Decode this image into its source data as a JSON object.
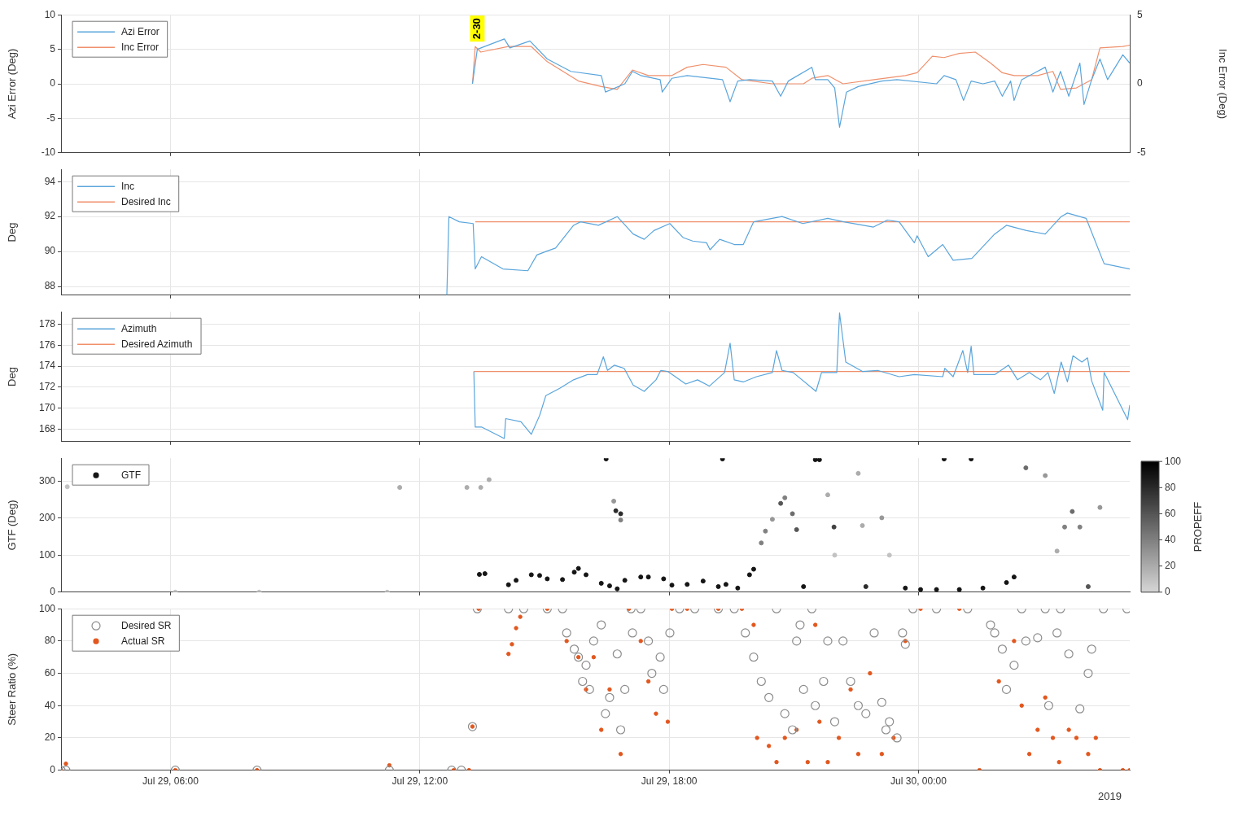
{
  "chart_data": [
    {
      "type": "line",
      "ylabel": "Azi Error (Deg)",
      "y2label": "Inc Error (Deg)",
      "xlim": [
        "--07-29T03:22",
        "--07-30T05:05"
      ],
      "xticks": [
        {
          "value": "--07-29T06:00",
          "label": "Jul 29, 06:00"
        },
        {
          "value": "--07-29T12:00",
          "label": "Jul 29, 12:00"
        },
        {
          "value": "--07-29T18:00",
          "label": "Jul 29, 18:00"
        },
        {
          "value": "--07-30T00:00",
          "label": "Jul 30, 00:00"
        }
      ],
      "ylim": [
        -10,
        10
      ],
      "yticks": [
        -10,
        -5,
        0,
        5,
        10
      ],
      "y2lim": [
        -5,
        5
      ],
      "y2ticks": [
        -5,
        0,
        5
      ],
      "tick_labels": "y",
      "grid": true,
      "legend": "top left",
      "marker": "none",
      "line_style": "solid",
      "annotations": [
        {
          "text": "2-30",
          "x": "--07-29T13:23",
          "y": 8
        }
      ],
      "series": [
        {
          "name": "Azi Error",
          "color": "#5aa5dc",
          "x": [
            "--07-29T13:16",
            "--07-29T13:23",
            "--07-29T14:02",
            "--07-29T14:10",
            "--07-29T14:39",
            "--07-29T15:04",
            "--07-29T15:38",
            "--07-29T16:22",
            "--07-29T16:28",
            "--07-29T16:56",
            "--07-29T17:07",
            "--07-29T17:19",
            "--07-29T17:47",
            "--07-29T17:50",
            "--07-29T18:04",
            "--07-29T18:26",
            "--07-29T19:17",
            "--07-29T19:28",
            "--07-29T19:39",
            "--07-29T19:56",
            "--07-29T20:29",
            "--07-29T20:41",
            "--07-29T20:52",
            "--07-29T21:26",
            "--07-29T21:31",
            "--07-29T21:49",
            "--07-29T21:59",
            "--07-29T22:06",
            "--07-29T22:16",
            "--07-29T22:33",
            "--07-29T23:07",
            "--07-29T23:29",
            "--07-30T00:26",
            "--07-30T00:37",
            "--07-30T00:54",
            "--07-30T01:05",
            "--07-30T01:16",
            "--07-30T01:33",
            "--07-30T01:50",
            "--07-30T02:01",
            "--07-30T02:13",
            "--07-30T02:18",
            "--07-30T02:29",
            "--07-30T03:03",
            "--07-30T03:14",
            "--07-30T03:25",
            "--07-30T03:37",
            "--07-30T03:53",
            "--07-30T03:59",
            "--07-30T04:10",
            "--07-30T04:22",
            "--07-30T04:33",
            "--07-30T04:55",
            "--07-30T05:05"
          ],
          "values": [
            0,
            5,
            6.5,
            5.2,
            6.2,
            3.6,
            1.8,
            1.2,
            -1.2,
            0,
            1.8,
            1.2,
            0.6,
            -1.2,
            0.8,
            1.2,
            0.6,
            -2.6,
            0.4,
            0.6,
            0.4,
            -1.8,
            0.4,
            2.4,
            0.6,
            0.6,
            -0.6,
            -6.3,
            -1.2,
            -0.4,
            0.4,
            0.6,
            0,
            1.2,
            0.6,
            -2.4,
            0.4,
            0,
            0.4,
            -1.8,
            0.4,
            -2.4,
            0.6,
            2.4,
            -1.2,
            1.8,
            -1.8,
            3,
            -3,
            0.6,
            3.6,
            0.6,
            4.2,
            3
          ]
        },
        {
          "name": "Inc Error",
          "color": "#f0906c",
          "axis": "y2",
          "x": [
            "--07-29T13:16",
            "--07-29T13:20",
            "--07-29T13:28",
            "--07-29T14:08",
            "--07-29T14:41",
            "--07-29T15:04",
            "--07-29T15:49",
            "--07-29T16:22",
            "--07-29T16:45",
            "--07-29T17:07",
            "--07-29T17:30",
            "--07-29T18:04",
            "--07-29T18:26",
            "--07-29T18:49",
            "--07-29T19:22",
            "--07-29T19:45",
            "--07-29T20:29",
            "--07-29T21:14",
            "--07-29T21:26",
            "--07-29T21:49",
            "--07-29T22:11",
            "--07-29T22:56",
            "--07-29T23:41",
            "--07-29T23:58",
            "--07-30T00:20",
            "--07-30T00:37",
            "--07-30T00:59",
            "--07-30T01:22",
            "--07-30T01:44",
            "--07-30T02:01",
            "--07-30T02:18",
            "--07-30T02:52",
            "--07-30T03:14",
            "--07-30T03:25",
            "--07-30T03:48",
            "--07-30T04:10",
            "--07-30T04:22",
            "--07-30T04:55",
            "--07-30T05:05"
          ],
          "values": [
            0,
            2.7,
            2.3,
            2.7,
            2.7,
            1.6,
            0.2,
            -0.2,
            -0.4,
            1.0,
            0.6,
            0.6,
            1.2,
            1.4,
            1.2,
            0.3,
            0,
            0,
            0.4,
            0.6,
            0,
            0.3,
            0.6,
            0.8,
            2.0,
            1.9,
            2.2,
            2.3,
            1.5,
            0.8,
            0.6,
            0.6,
            0.9,
            -0.4,
            -0.3,
            0.3,
            2.6,
            2.7,
            2.8
          ]
        }
      ]
    },
    {
      "type": "line",
      "ylabel": "Deg",
      "xlim": [
        "--07-29T03:22",
        "--07-30T05:05"
      ],
      "xticks": [
        {
          "value": "--07-29T06:00",
          "label": "Jul 29, 06:00"
        },
        {
          "value": "--07-29T12:00",
          "label": "Jul 29, 12:00"
        },
        {
          "value": "--07-29T18:00",
          "label": "Jul 29, 18:00"
        },
        {
          "value": "--07-30T00:00",
          "label": "Jul 30, 00:00"
        }
      ],
      "ylim": [
        87.5,
        94.7
      ],
      "yticks": [
        88,
        90,
        92,
        94
      ],
      "tick_labels": "y",
      "grid": true,
      "legend": "top left",
      "marker": "none",
      "line_style": "solid",
      "series": [
        {
          "name": "Inc",
          "color": "#5aa5dc",
          "x": [
            "--07-29T12:39",
            "--07-29T12:42",
            "--07-29T12:57",
            "--07-29T13:17",
            "--07-29T13:20",
            "--07-29T13:29",
            "--07-29T14:00",
            "--07-29T14:36",
            "--07-29T14:49",
            "--07-29T15:02",
            "--07-29T15:16",
            "--07-29T15:42",
            "--07-29T15:52",
            "--07-29T16:18",
            "--07-29T16:45",
            "--07-29T17:08",
            "--07-29T17:24",
            "--07-29T17:38",
            "--07-29T18:01",
            "--07-29T18:20",
            "--07-29T18:34",
            "--07-29T18:54",
            "--07-29T18:59",
            "--07-29T19:13",
            "--07-29T19:34",
            "--07-29T19:47",
            "--07-29T20:02",
            "--07-29T20:43",
            "--07-29T21:13",
            "--07-29T21:49",
            "--07-29T22:12",
            "--07-29T22:55",
            "--07-29T23:15",
            "--07-29T23:32",
            "--07-29T23:54",
            "--07-29T23:58",
            "--07-30T00:14",
            "--07-30T00:35",
            "--07-30T00:50",
            "--07-30T01:17",
            "--07-30T01:50",
            "--07-30T02:07",
            "--07-30T02:36",
            "--07-30T03:03",
            "--07-30T03:26",
            "--07-30T03:35",
            "--07-30T04:02",
            "--07-30T04:28",
            "--07-30T05:05"
          ],
          "values": [
            87.5,
            92.0,
            91.7,
            91.6,
            89.0,
            89.7,
            89.0,
            88.9,
            89.8,
            90.0,
            90.2,
            91.5,
            91.7,
            91.5,
            92.0,
            91.0,
            90.7,
            91.2,
            91.6,
            90.8,
            90.6,
            90.5,
            90.1,
            90.7,
            90.4,
            90.4,
            91.7,
            92.0,
            91.6,
            91.9,
            91.7,
            91.4,
            91.8,
            91.7,
            90.5,
            90.9,
            89.7,
            90.4,
            89.5,
            89.6,
            91.0,
            91.5,
            91.2,
            91.0,
            92.0,
            92.2,
            91.9,
            89.3,
            89.0
          ]
        },
        {
          "name": "Desired Inc",
          "color": "#f0906c",
          "x": [
            "--07-29T13:20",
            "--07-30T05:05"
          ],
          "values": [
            91.7,
            91.7
          ]
        }
      ]
    },
    {
      "type": "line",
      "ylabel": "Deg",
      "xlim": [
        "--07-29T03:22",
        "--07-30T05:05"
      ],
      "xticks": [
        {
          "value": "--07-29T06:00",
          "label": "Jul 29, 06:00"
        },
        {
          "value": "--07-29T12:00",
          "label": "Jul 29, 12:00"
        },
        {
          "value": "--07-29T18:00",
          "label": "Jul 29, 18:00"
        },
        {
          "value": "--07-30T00:00",
          "label": "Jul 30, 00:00"
        }
      ],
      "ylim": [
        166.8,
        179.2
      ],
      "yticks": [
        168,
        170,
        172,
        174,
        176,
        178
      ],
      "tick_labels": "y",
      "grid": true,
      "legend": "top left",
      "marker": "none",
      "line_style": "solid",
      "series": [
        {
          "name": "Azimuth",
          "color": "#5aa5dc",
          "x": [
            "--07-29T13:18",
            "--07-29T13:20",
            "--07-29T13:29",
            "--07-29T14:02",
            "--07-29T14:04",
            "--07-29T14:26",
            "--07-29T14:41",
            "--07-29T14:53",
            "--07-29T15:02",
            "--07-29T15:22",
            "--07-29T15:42",
            "--07-29T16:02",
            "--07-29T16:16",
            "--07-29T16:25",
            "--07-29T16:31",
            "--07-29T16:41",
            "--07-29T16:55",
            "--07-29T17:08",
            "--07-29T17:24",
            "--07-29T17:41",
            "--07-29T17:48",
            "--07-29T17:58",
            "--07-29T18:24",
            "--07-29T18:41",
            "--07-29T18:58",
            "--07-29T19:20",
            "--07-29T19:28",
            "--07-29T19:34",
            "--07-29T19:47",
            "--07-29T20:06",
            "--07-29T20:29",
            "--07-29T20:35",
            "--07-29T20:43",
            "--07-29T20:59",
            "--07-29T21:32",
            "--07-29T21:40",
            "--07-29T22:02",
            "--07-29T22:06",
            "--07-29T22:15",
            "--07-29T22:39",
            "--07-29T23:01",
            "--07-29T23:32",
            "--07-29T23:54",
            "--07-30T00:35",
            "--07-30T00:38",
            "--07-30T00:50",
            "--07-30T01:04",
            "--07-30T01:11",
            "--07-30T01:16",
            "--07-30T01:20",
            "--07-30T01:50",
            "--07-30T02:10",
            "--07-30T02:23",
            "--07-30T02:40",
            "--07-30T02:56",
            "--07-30T03:07",
            "--07-30T03:16",
            "--07-30T03:26",
            "--07-30T03:35",
            "--07-30T03:43",
            "--07-30T03:56",
            "--07-30T04:04",
            "--07-30T04:10",
            "--07-30T04:26",
            "--07-30T04:28",
            "--07-30T05:02",
            "--07-30T05:05"
          ],
          "values": [
            173.5,
            168.2,
            168.2,
            167.1,
            169.0,
            168.7,
            167.5,
            169.3,
            171.2,
            171.9,
            172.7,
            173.2,
            173.2,
            174.9,
            173.6,
            174.1,
            173.8,
            172.2,
            171.6,
            172.7,
            173.6,
            173.5,
            172.3,
            172.7,
            172.1,
            173.4,
            176.2,
            172.7,
            172.5,
            173.0,
            173.4,
            175.5,
            173.6,
            173.4,
            171.6,
            173.4,
            173.4,
            179.1,
            174.4,
            173.5,
            173.6,
            173.0,
            173.2,
            173.0,
            173.8,
            173.0,
            175.5,
            173.4,
            175.9,
            173.2,
            173.2,
            174.1,
            172.7,
            173.4,
            172.7,
            173.4,
            171.4,
            174.4,
            172.5,
            175.0,
            174.4,
            174.8,
            172.6,
            169.8,
            173.4,
            168.9,
            170.3
          ]
        },
        {
          "name": "Desired Azimuth",
          "color": "#f0906c",
          "x": [
            "--07-29T13:18",
            "--07-30T05:05"
          ],
          "values": [
            173.5,
            173.5
          ]
        }
      ]
    },
    {
      "type": "scatter",
      "ylabel": "GTF (Deg)",
      "clabel": "PROPEFF",
      "clim": [
        0,
        100
      ],
      "cticks": [
        0,
        20,
        40,
        60,
        80,
        100
      ],
      "xlim": [
        "--07-29T03:22",
        "--07-30T05:05"
      ],
      "xticks": [
        {
          "value": "--07-29T06:00",
          "label": "Jul 29, 06:00"
        },
        {
          "value": "--07-29T12:00",
          "label": "Jul 29, 12:00"
        },
        {
          "value": "--07-29T18:00",
          "label": "Jul 29, 18:00"
        },
        {
          "value": "--07-30T00:00",
          "label": "Jul 30, 00:00"
        }
      ],
      "ylim": [
        0,
        362
      ],
      "yticks": [
        0,
        100,
        200,
        300
      ],
      "tick_labels": "y",
      "grid": true,
      "legend": "top left",
      "marker": "circle",
      "series": [
        {
          "name": "GTF",
          "x": [
            "--07-29T03:31",
            "--07-29T06:07",
            "--07-29T08:08",
            "--07-29T11:13",
            "--07-29T11:31",
            "--07-29T13:08",
            "--07-29T13:28",
            "--07-29T13:40",
            "--07-29T13:26",
            "--07-29T13:34",
            "--07-29T14:08",
            "--07-29T14:19",
            "--07-29T14:41",
            "--07-29T14:53",
            "--07-29T15:04",
            "--07-29T15:26",
            "--07-29T15:43",
            "--07-29T15:49",
            "--07-29T16:00",
            "--07-29T16:22",
            "--07-29T16:29",
            "--07-29T16:34",
            "--07-29T16:40",
            "--07-29T16:43",
            "--07-29T16:45",
            "--07-29T16:50",
            "--07-29T16:50",
            "--07-29T16:56",
            "--07-29T17:19",
            "--07-29T17:30",
            "--07-29T17:52",
            "--07-29T18:04",
            "--07-29T18:26",
            "--07-29T18:49",
            "--07-29T19:11",
            "--07-29T19:17",
            "--07-29T19:22",
            "--07-29T19:39",
            "--07-29T19:56",
            "--07-29T20:02",
            "--07-29T20:13",
            "--07-29T20:19",
            "--07-29T20:29",
            "--07-29T20:41",
            "--07-29T20:47",
            "--07-29T20:58",
            "--07-29T21:04",
            "--07-29T21:14",
            "--07-29T21:31",
            "--07-29T21:37",
            "--07-29T21:49",
            "--07-29T21:58",
            "--07-29T21:59",
            "--07-29T22:33",
            "--07-29T22:39",
            "--07-29T22:44",
            "--07-29T23:07",
            "--07-29T23:18",
            "--07-29T23:41",
            "--07-30T00:03",
            "--07-30T00:26",
            "--07-30T00:37",
            "--07-30T00:59",
            "--07-30T01:16",
            "--07-30T01:33",
            "--07-30T02:07",
            "--07-30T02:18",
            "--07-30T02:35",
            "--07-30T03:03",
            "--07-30T03:20",
            "--07-30T03:31",
            "--07-30T03:42",
            "--07-30T03:53",
            "--07-30T04:05",
            "--07-30T04:22"
          ],
          "values": [
            285,
            0,
            0,
            0,
            283,
            283,
            283,
            304,
            48,
            50,
            20,
            32,
            47,
            45,
            36,
            34,
            54,
            64,
            47,
            24,
            360,
            17,
            246,
            220,
            9,
            212,
            195,
            32,
            41,
            41,
            36,
            19,
            21,
            30,
            15,
            360,
            21,
            11,
            47,
            62,
            133,
            165,
            197,
            240,
            255,
            212,
            169,
            15,
            358,
            358,
            263,
            176,
            100,
            321,
            180,
            15,
            201,
            100,
            11,
            7,
            7,
            360,
            7,
            360,
            11,
            26,
            41,
            336,
            315,
            111,
            176,
            218,
            176,
            15,
            229
          ],
          "cvalues": [
            10,
            10,
            10,
            10,
            20,
            20,
            20,
            20,
            90,
            90,
            90,
            90,
            90,
            90,
            90,
            90,
            90,
            90,
            90,
            90,
            90,
            90,
            30,
            80,
            90,
            80,
            40,
            90,
            90,
            90,
            90,
            90,
            90,
            90,
            90,
            90,
            90,
            90,
            90,
            90,
            40,
            40,
            30,
            60,
            40,
            50,
            60,
            90,
            90,
            90,
            20,
            70,
            10,
            20,
            20,
            80,
            30,
            10,
            90,
            90,
            90,
            90,
            90,
            90,
            90,
            90,
            90,
            50,
            30,
            20,
            40,
            50,
            40,
            60,
            30
          ]
        }
      ]
    },
    {
      "type": "scatter",
      "ylabel": "Steer Ratio (%)",
      "xlim": [
        "--07-29T03:22",
        "--07-30T05:05"
      ],
      "xticks": [
        {
          "value": "--07-29T06:00",
          "label": "Jul 29, 06:00"
        },
        {
          "value": "--07-29T12:00",
          "label": "Jul 29, 12:00"
        },
        {
          "value": "--07-29T18:00",
          "label": "Jul 29, 18:00"
        },
        {
          "value": "--07-30T00:00",
          "label": "Jul 30, 00:00"
        }
      ],
      "ylim": [
        0,
        100
      ],
      "yticks": [
        0,
        20,
        40,
        60,
        80,
        100
      ],
      "grid": true,
      "legend": "top left",
      "marker": "circle",
      "annotations": [
        "2019"
      ],
      "series": [
        {
          "name": "Desired SR",
          "color": "#8c8c8c",
          "x": [
            "--07-29T03:22",
            "--07-29T03:29",
            "--07-29T06:07",
            "--07-29T08:05",
            "--07-29T11:16",
            "--07-29T12:46",
            "--07-29T13:00",
            "--07-29T13:16",
            "--07-29T13:23",
            "--07-29T14:08",
            "--07-29T14:30",
            "--07-29T15:04",
            "--07-29T15:26",
            "--07-29T15:32",
            "--07-29T15:43",
            "--07-29T15:49",
            "--07-29T15:55",
            "--07-29T16:00",
            "--07-29T16:05",
            "--07-29T16:11",
            "--07-29T16:22",
            "--07-29T16:28",
            "--07-29T16:34",
            "--07-29T16:45",
            "--07-29T16:50",
            "--07-29T16:56",
            "--07-29T17:05",
            "--07-29T17:07",
            "--07-29T17:19",
            "--07-29T17:30",
            "--07-29T17:35",
            "--07-29T17:47",
            "--07-29T17:52",
            "--07-29T18:01",
            "--07-29T18:15",
            "--07-29T18:37",
            "--07-29T19:11",
            "--07-29T19:34",
            "--07-29T19:50",
            "--07-29T20:02",
            "--07-29T20:13",
            "--07-29T20:24",
            "--07-29T20:35",
            "--07-29T20:47",
            "--07-29T20:58",
            "--07-29T21:04",
            "--07-29T21:09",
            "--07-29T21:14",
            "--07-29T21:26",
            "--07-29T21:31",
            "--07-29T21:43",
            "--07-29T21:49",
            "--07-29T21:59",
            "--07-29T22:11",
            "--07-29T22:22",
            "--07-29T22:33",
            "--07-29T22:44",
            "--07-29T22:56",
            "--07-29T23:07",
            "--07-29T23:13",
            "--07-29T23:18",
            "--07-29T23:29",
            "--07-29T23:37",
            "--07-29T23:41",
            "--07-29T23:52",
            "--07-30T00:26",
            "--07-30T01:11",
            "--07-30T01:44",
            "--07-30T01:50",
            "--07-30T02:01",
            "--07-30T02:07",
            "--07-30T02:18",
            "--07-30T02:29",
            "--07-30T02:35",
            "--07-30T02:52",
            "--07-30T03:03",
            "--07-30T03:08",
            "--07-30T03:20",
            "--07-30T03:25",
            "--07-30T03:37",
            "--07-30T03:53",
            "--07-30T04:05",
            "--07-30T04:10",
            "--07-30T04:27",
            "--07-30T05:01"
          ],
          "values": [
            0,
            0,
            0,
            0,
            0,
            0,
            0,
            27,
            100,
            100,
            100,
            100,
            100,
            85,
            75,
            70,
            55,
            65,
            50,
            80,
            90,
            35,
            45,
            72,
            25,
            50,
            100,
            85,
            100,
            80,
            60,
            70,
            50,
            85,
            100,
            100,
            100,
            100,
            85,
            70,
            55,
            45,
            100,
            35,
            25,
            80,
            90,
            50,
            100,
            40,
            55,
            80,
            30,
            80,
            55,
            40,
            35,
            85,
            42,
            25,
            30,
            20,
            85,
            78,
            100,
            100,
            100,
            90,
            85,
            75,
            50,
            65,
            100,
            80,
            82,
            100,
            40,
            85,
            100,
            72,
            38,
            60,
            75,
            100,
            100
          ]
        },
        {
          "name": "Actual SR",
          "color": "#e2571e",
          "x": [
            "--07-29T03:22",
            "--07-29T03:29",
            "--07-29T06:07",
            "--07-29T08:05",
            "--07-29T11:16",
            "--07-29T12:49",
            "--07-29T13:11",
            "--07-29T13:16",
            "--07-29T13:25",
            "--07-29T14:08",
            "--07-29T14:13",
            "--07-29T14:19",
            "--07-29T14:25",
            "--07-29T15:04",
            "--07-29T15:32",
            "--07-29T15:49",
            "--07-29T16:00",
            "--07-29T16:11",
            "--07-29T16:22",
            "--07-29T16:34",
            "--07-29T16:50",
            "--07-29T17:02",
            "--07-29T17:19",
            "--07-29T17:30",
            "--07-29T17:41",
            "--07-29T17:58",
            "--07-29T18:04",
            "--07-29T18:26",
            "--07-29T19:11",
            "--07-29T19:45",
            "--07-29T20:02",
            "--07-29T20:07",
            "--07-29T20:24",
            "--07-29T20:35",
            "--07-29T20:47",
            "--07-29T21:04",
            "--07-29T21:20",
            "--07-29T21:31",
            "--07-29T21:37",
            "--07-29T21:49",
            "--07-29T22:05",
            "--07-29T22:22",
            "--07-29T22:33",
            "--07-29T22:50",
            "--07-29T23:07",
            "--07-29T23:24",
            "--07-29T23:41",
            "--07-30T00:03",
            "--07-30T00:59",
            "--07-30T01:28",
            "--07-30T01:56",
            "--07-30T02:18",
            "--07-30T02:29",
            "--07-30T02:40",
            "--07-30T02:52",
            "--07-30T03:03",
            "--07-30T03:14",
            "--07-30T03:23",
            "--07-30T03:37",
            "--07-30T03:48",
            "--07-30T04:05",
            "--07-30T04:16",
            "--07-30T04:22",
            "--07-30T04:55",
            "--07-30T05:05"
          ],
          "values": [
            0,
            4,
            0,
            0,
            3,
            0,
            0,
            27,
            100,
            72,
            78,
            88,
            95,
            100,
            80,
            70,
            50,
            70,
            25,
            50,
            10,
            100,
            80,
            55,
            35,
            30,
            100,
            100,
            100,
            100,
            90,
            20,
            15,
            5,
            20,
            25,
            5,
            90,
            30,
            5,
            20,
            50,
            10,
            60,
            10,
            20,
            80,
            100,
            100,
            0,
            55,
            80,
            40,
            10,
            25,
            45,
            20,
            5,
            25,
            20,
            10,
            20,
            0,
            0,
            0
          ]
        }
      ]
    }
  ]
}
